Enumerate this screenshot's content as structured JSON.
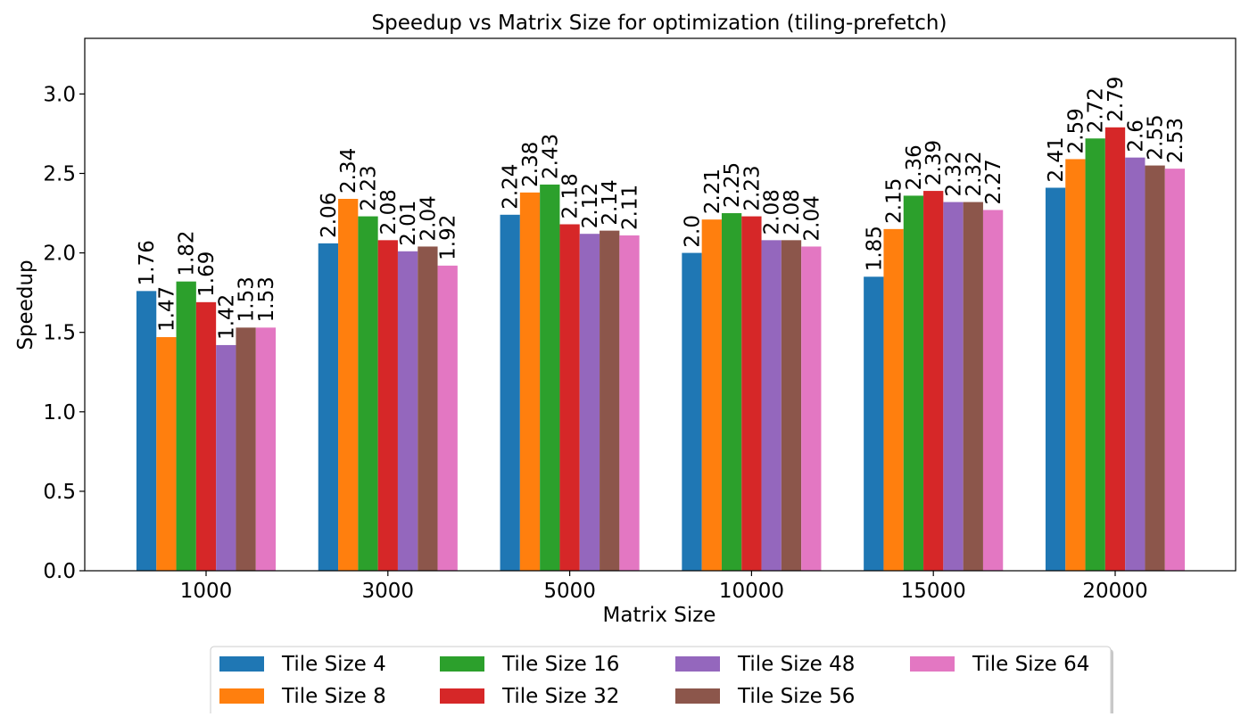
{
  "chart_data": {
    "type": "bar",
    "title": "Speedup vs Matrix Size for optimization (tiling-prefetch)",
    "xlabel": "Matrix Size",
    "ylabel": "Speedup",
    "ylim": [
      0,
      3.35
    ],
    "yticks": [
      "0.0",
      "0.5",
      "1.0",
      "1.5",
      "2.0",
      "2.5",
      "3.0"
    ],
    "grid": false,
    "legend_placement": "bottom-center",
    "categories": [
      "1000",
      "3000",
      "5000",
      "10000",
      "15000",
      "20000"
    ],
    "series": [
      {
        "name": "Tile Size 4",
        "color": "#1f77b4",
        "values": [
          1.76,
          2.06,
          2.24,
          2.0,
          1.85,
          2.41
        ],
        "labels": [
          "1.76",
          "2.06",
          "2.24",
          "2.0",
          "1.85",
          "2.41"
        ]
      },
      {
        "name": "Tile Size 8",
        "color": "#ff7f0e",
        "values": [
          1.47,
          2.34,
          2.38,
          2.21,
          2.15,
          2.59
        ],
        "labels": [
          "1.47",
          "2.34",
          "2.38",
          "2.21",
          "2.15",
          "2.59"
        ]
      },
      {
        "name": "Tile Size 16",
        "color": "#2ca02c",
        "values": [
          1.82,
          2.23,
          2.43,
          2.25,
          2.36,
          2.72
        ],
        "labels": [
          "1.82",
          "2.23",
          "2.43",
          "2.25",
          "2.36",
          "2.72"
        ]
      },
      {
        "name": "Tile Size 32",
        "color": "#d62728",
        "values": [
          1.69,
          2.08,
          2.18,
          2.23,
          2.39,
          2.79
        ],
        "labels": [
          "1.69",
          "2.08",
          "2.18",
          "2.23",
          "2.39",
          "2.79"
        ]
      },
      {
        "name": "Tile Size 48",
        "color": "#9467bd",
        "values": [
          1.42,
          2.01,
          2.12,
          2.08,
          2.32,
          2.6
        ],
        "labels": [
          "1.42",
          "2.01",
          "2.12",
          "2.08",
          "2.32",
          "2.6"
        ]
      },
      {
        "name": "Tile Size 56",
        "color": "#8c564b",
        "values": [
          1.53,
          2.04,
          2.14,
          2.08,
          2.32,
          2.55
        ],
        "labels": [
          "1.53",
          "2.04",
          "2.14",
          "2.08",
          "2.32",
          "2.55"
        ]
      },
      {
        "name": "Tile Size 64",
        "color": "#e377c2",
        "values": [
          1.53,
          1.92,
          2.11,
          2.04,
          2.27,
          2.53
        ],
        "labels": [
          "1.53",
          "1.92",
          "2.11",
          "2.04",
          "2.27",
          "2.53"
        ]
      }
    ]
  }
}
